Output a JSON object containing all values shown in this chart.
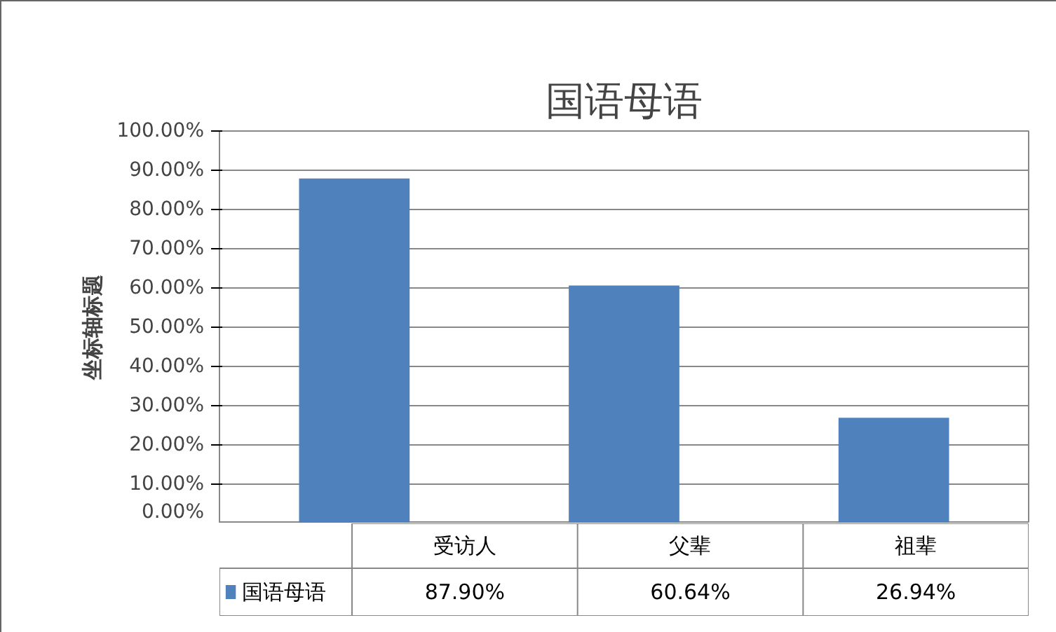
{
  "chart_data": {
    "type": "bar",
    "title": "国语母语",
    "ylabel": "坐标轴标题",
    "categories": [
      "受访人",
      "父辈",
      "祖辈"
    ],
    "series": [
      {
        "name": "国语母语",
        "color": "#4f81bd",
        "values": [
          87.9,
          60.64,
          26.94
        ],
        "value_labels": [
          "87.90%",
          "60.64%",
          "26.94%"
        ]
      }
    ],
    "ylim": [
      0,
      100
    ],
    "yticks": [
      {
        "value": 0,
        "label": "0.00%"
      },
      {
        "value": 10,
        "label": "10.00%"
      },
      {
        "value": 20,
        "label": "20.00%"
      },
      {
        "value": 30,
        "label": "30.00%"
      },
      {
        "value": 40,
        "label": "40.00%"
      },
      {
        "value": 50,
        "label": "50.00%"
      },
      {
        "value": 60,
        "label": "60.00%"
      },
      {
        "value": 70,
        "label": "70.00%"
      },
      {
        "value": 80,
        "label": "80.00%"
      },
      {
        "value": 90,
        "label": "90.00%"
      },
      {
        "value": 100,
        "label": "100.00%"
      }
    ],
    "grid": "y",
    "legend": "bottom"
  }
}
